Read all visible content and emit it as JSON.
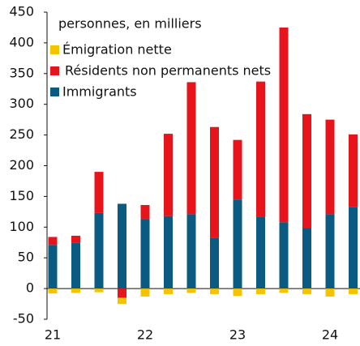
{
  "chart_data": {
    "type": "stacked-bar",
    "subtitle": "personnes, en milliers",
    "categories": [
      "21",
      null,
      null,
      null,
      "22",
      null,
      null,
      null,
      "23",
      null,
      null,
      null,
      "24",
      null
    ],
    "series": [
      {
        "name": "Émigration nette",
        "color": "#f5c400",
        "values": [
          -8,
          -7,
          -6,
          -10,
          -13,
          -9,
          -7,
          -9,
          -12,
          -9,
          -7,
          -9,
          -13,
          -9
        ]
      },
      {
        "name": "Résidents non permanents nets",
        "color": "#e8141c",
        "values": [
          13,
          11,
          67,
          -15,
          23,
          134,
          215,
          180,
          97,
          220,
          317,
          185,
          154,
          118
        ]
      },
      {
        "name": "Immigrants",
        "color": "#0a5a82",
        "values": [
          71,
          75,
          123,
          138,
          113,
          118,
          121,
          83,
          145,
          117,
          108,
          99,
          121,
          133
        ]
      }
    ],
    "ylim": [
      -50,
      450
    ],
    "yticks": [
      -50,
      0,
      50,
      100,
      150,
      200,
      250,
      300,
      350,
      400,
      450
    ],
    "legend": "top-left"
  }
}
